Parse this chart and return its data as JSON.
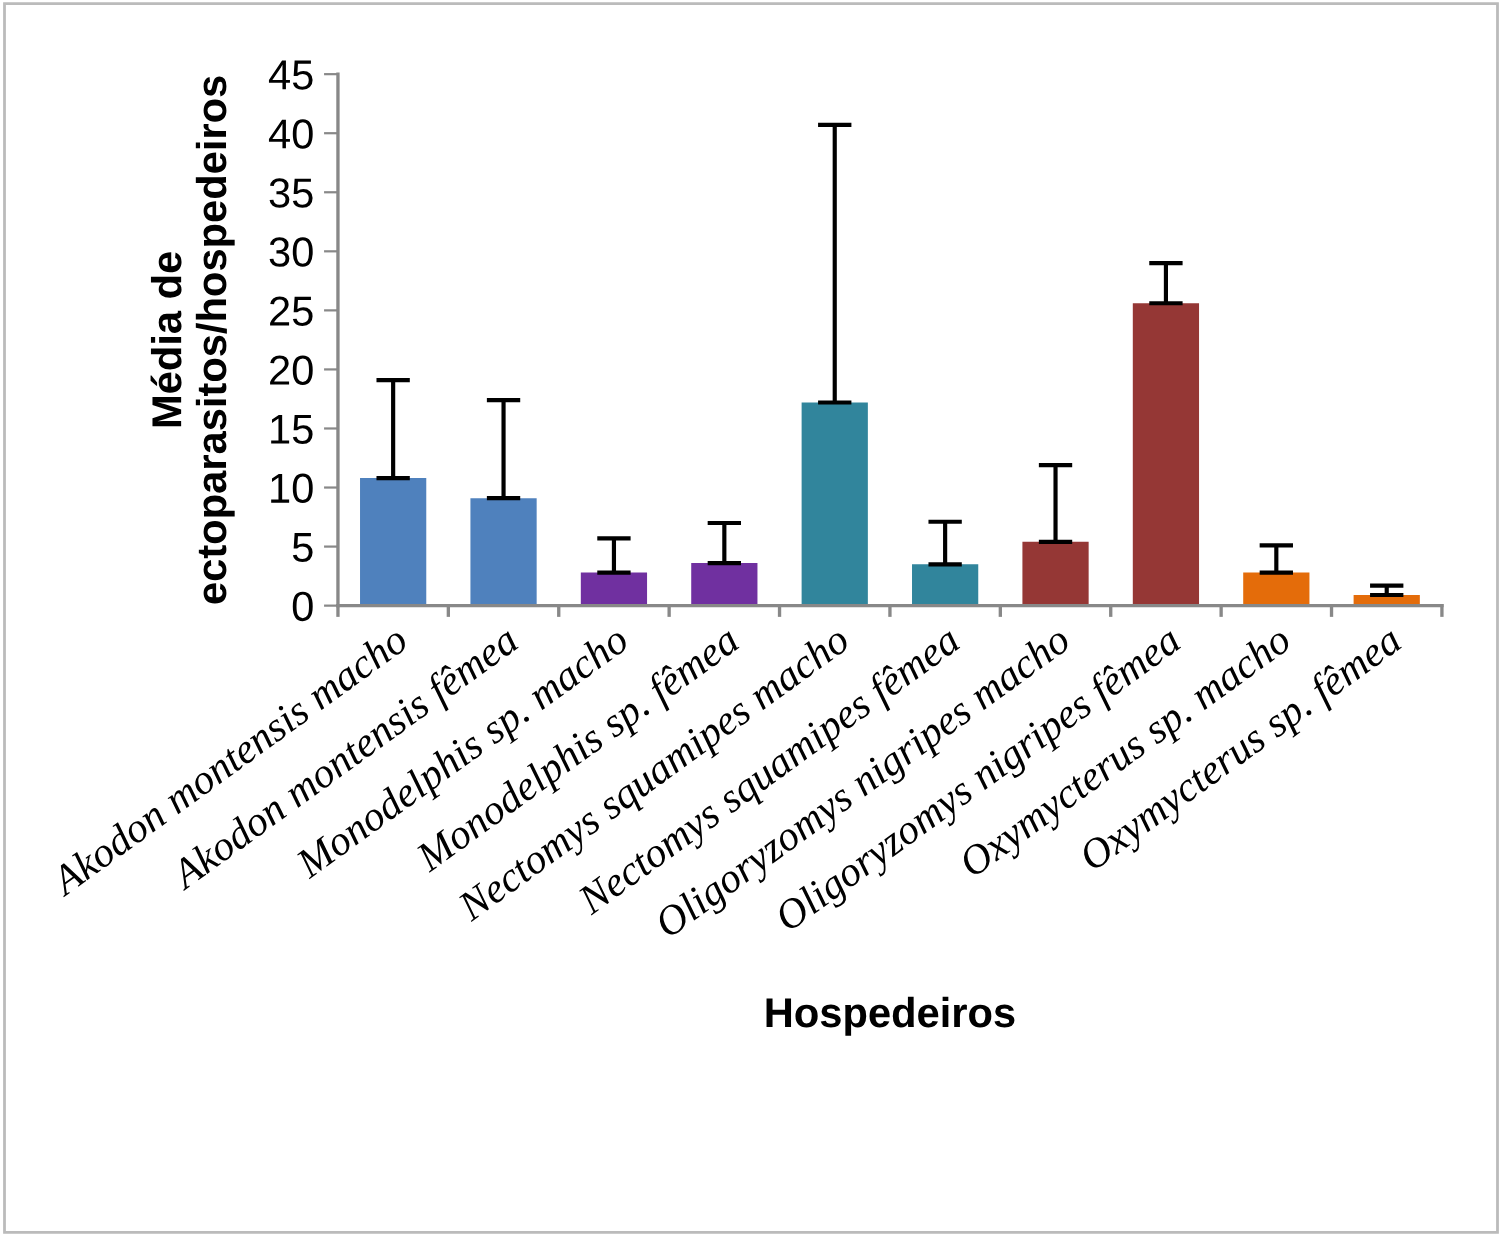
{
  "chart_data": {
    "type": "bar",
    "xlabel": "Hospedeiros",
    "ylabel": "Média de\nectoparasitos/hospedeiros",
    "categories": [
      "Akodon montensis macho",
      "Akodon montensis fêmea",
      "Monodelphis sp. macho",
      "Monodelphis sp. fêmea",
      "Nectomys squamipes macho",
      "Nectomys squamipes fêmea",
      "Oligoryzomys nigripes macho",
      "Oligoryzomys nigripes fêmea",
      "Oxymycterus sp. macho",
      "Oxymycterus sp. fêmea"
    ],
    "values": [
      10.8,
      9.1,
      2.8,
      3.6,
      17.2,
      3.5,
      5.4,
      25.6,
      2.8,
      0.9
    ],
    "errors": [
      [
        10.8,
        19.1
      ],
      [
        9.1,
        17.4
      ],
      [
        2.8,
        5.7
      ],
      [
        3.6,
        7.0
      ],
      [
        17.2,
        40.7
      ],
      [
        3.5,
        7.1
      ],
      [
        5.4,
        11.9
      ],
      [
        25.6,
        29.0
      ],
      [
        2.8,
        5.1
      ],
      [
        0.9,
        1.7
      ]
    ],
    "colors": [
      "#4f81bd",
      "#4f81bd",
      "#7030a0",
      "#7030a0",
      "#31859c",
      "#31859c",
      "#953735",
      "#953735",
      "#e46c0a",
      "#e46c0a"
    ],
    "ylim": [
      0,
      45
    ],
    "yticks": [
      0,
      5,
      10,
      15,
      20,
      25,
      30,
      35,
      40,
      45
    ],
    "grid": false,
    "legend": false
  }
}
